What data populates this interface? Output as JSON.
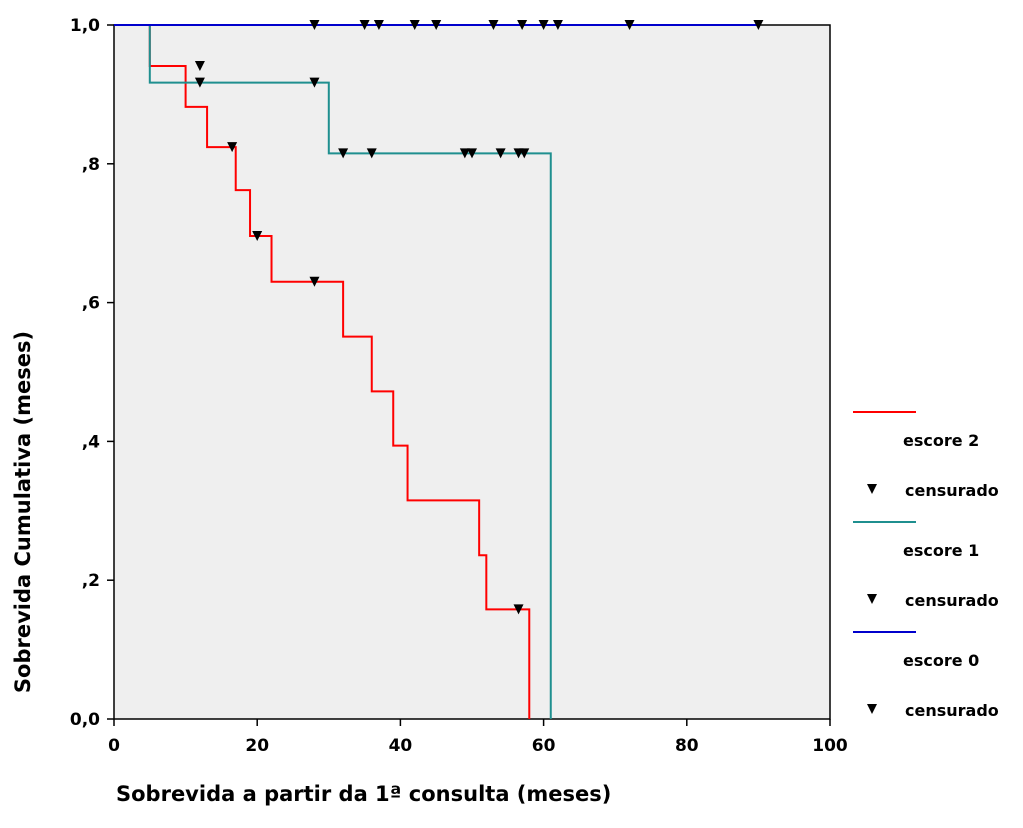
{
  "chart_data": {
    "type": "line",
    "subtype": "kaplan-meier-step",
    "title": "",
    "xlabel": "Sobrevida a partir da 1ª consulta (meses)",
    "ylabel": "Sobrevida Cumulativa (meses)",
    "xlim": [
      0,
      100
    ],
    "ylim": [
      0,
      1
    ],
    "x_ticks": [
      0,
      20,
      40,
      60,
      80,
      100
    ],
    "x_tick_labels": [
      "0",
      "20",
      "40",
      "60",
      "80",
      "100"
    ],
    "y_ticks": [
      0,
      0.2,
      0.4,
      0.6,
      0.8,
      1.0
    ],
    "y_tick_labels": [
      "0,0",
      ",2",
      ",4",
      ",6",
      ",8",
      "1,0"
    ],
    "grid": false,
    "plot_background": "#efefef",
    "legend_position": "right",
    "series": [
      {
        "name": "escore 2",
        "censor_label": "censurado",
        "color": "#ff0000",
        "steps": [
          [
            0,
            1.0
          ],
          [
            5,
            0.941
          ],
          [
            10,
            0.882
          ],
          [
            13,
            0.824
          ],
          [
            17,
            0.762
          ],
          [
            19,
            0.696
          ],
          [
            22,
            0.63
          ],
          [
            32,
            0.551
          ],
          [
            36,
            0.472
          ],
          [
            39,
            0.394
          ],
          [
            41,
            0.315
          ],
          [
            51,
            0.236
          ],
          [
            52,
            0.158
          ],
          [
            58,
            0.0
          ]
        ],
        "end_x": 58,
        "censored": [
          [
            12,
            0.941
          ],
          [
            16.5,
            0.824
          ],
          [
            20,
            0.696
          ],
          [
            28,
            0.63
          ],
          [
            56.5,
            0.158
          ]
        ]
      },
      {
        "name": "escore 1",
        "censor_label": "censurado",
        "color": "#1f8f8f",
        "steps": [
          [
            0,
            1.0
          ],
          [
            5,
            0.917
          ],
          [
            30,
            0.815
          ],
          [
            61,
            0.0
          ]
        ],
        "end_x": 61,
        "censored": [
          [
            12,
            0.917
          ],
          [
            28,
            0.917
          ],
          [
            32,
            0.815
          ],
          [
            36,
            0.815
          ],
          [
            49,
            0.815
          ],
          [
            50,
            0.815
          ],
          [
            54,
            0.815
          ],
          [
            56.5,
            0.815
          ],
          [
            57.3,
            0.815
          ]
        ]
      },
      {
        "name": "escore 0",
        "censor_label": "censurado",
        "color": "#0000cc",
        "steps": [
          [
            0,
            1.0
          ]
        ],
        "end_x": 90,
        "censored": [
          [
            28,
            1.0
          ],
          [
            35,
            1.0
          ],
          [
            37,
            1.0
          ],
          [
            42,
            1.0
          ],
          [
            45,
            1.0
          ],
          [
            53,
            1.0
          ],
          [
            57,
            1.0
          ],
          [
            60,
            1.0
          ],
          [
            62,
            1.0
          ],
          [
            72,
            1.0
          ],
          [
            90,
            1.0
          ]
        ]
      }
    ]
  }
}
